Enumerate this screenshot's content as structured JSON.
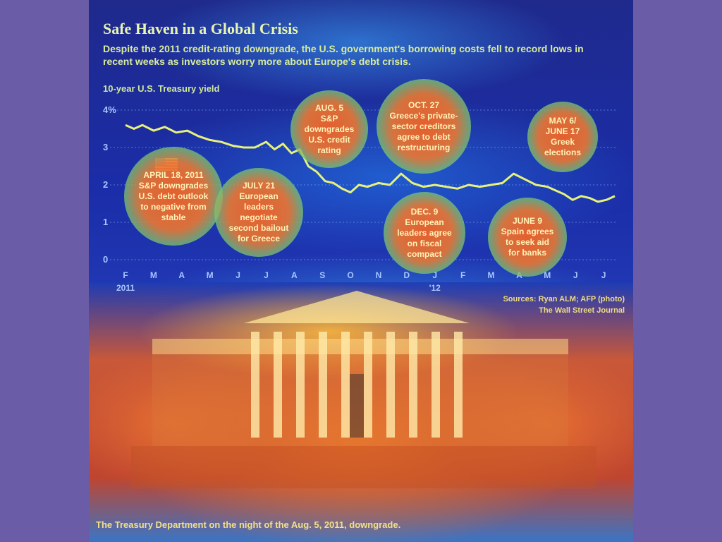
{
  "headline": {
    "title": "Safe Haven in a Global Crisis",
    "subtitle": "Despite the 2011 credit-rating downgrade, the U.S. government's borrowing costs fell to record lows in recent weeks as investors worry more about Europe's debt crisis."
  },
  "annotations": [
    {
      "date": "APRIL 18, 2011",
      "text": "S&P downgrades U.S. debt outlook to negative from stable"
    },
    {
      "date": "JULY 21",
      "text": "European leaders negotiate second bailout for Greece"
    },
    {
      "date": "AUG. 5",
      "text": "S&P downgrades U.S. credit rating"
    },
    {
      "date": "OCT. 27",
      "text": "Greece's private-sector creditors agree to debt restructuring"
    },
    {
      "date": "DEC. 9",
      "text": "European leaders agree on fiscal compact"
    },
    {
      "date": "MAY 6/ JUNE 17",
      "text": "Greek elections"
    },
    {
      "date": "JUNE 9",
      "text": "Spain agrees to seek aid for banks"
    }
  ],
  "credits": {
    "sources": "Sources: Ryan ALM; AFP (photo)",
    "publisher": "The Wall Street Journal"
  },
  "photo_caption": "The Treasury Department on the night of the Aug. 5, 2011, downgrade.",
  "colors": {
    "line": "#e6f27a",
    "axis_text": "#a8c6ff",
    "bubble_core": "#e8602c",
    "heat_blue": "#1f2da8",
    "frame": "#6a5ca6"
  },
  "chart_data": {
    "type": "line",
    "ylabel": "10-year U.S. Treasury yield",
    "ylim": [
      0,
      4
    ],
    "yticks": [
      0,
      1,
      2,
      3,
      4
    ],
    "ytick_labels": [
      "0",
      "1",
      "2",
      "3",
      "4%"
    ],
    "xlim": [
      0,
      17.5
    ],
    "month_labels": [
      "F",
      "M",
      "A",
      "M",
      "J",
      "J",
      "A",
      "S",
      "O",
      "N",
      "D",
      "J",
      "F",
      "M",
      "A",
      "M",
      "J",
      "J"
    ],
    "year_labels": [
      {
        "month": 0,
        "label": "2011"
      },
      {
        "month": 11,
        "label": "'12"
      }
    ],
    "grid": true,
    "series": [
      {
        "x": [
          0,
          0.3,
          0.6,
          1.0,
          1.4,
          1.8,
          2.2,
          2.6,
          3.0,
          3.4,
          3.8,
          4.2,
          4.6,
          5.0,
          5.3,
          5.6,
          5.9,
          6.2,
          6.5,
          6.8,
          7.1,
          7.4,
          7.7,
          8.0,
          8.3,
          8.6,
          9.0,
          9.4,
          9.8,
          10.2,
          10.6,
          11.0,
          11.4,
          11.8,
          12.2,
          12.6,
          13.0,
          13.4,
          13.8,
          14.2,
          14.6,
          15.0,
          15.3,
          15.6,
          15.9,
          16.2,
          16.5,
          16.8,
          17.1,
          17.4
        ],
        "y": [
          3.6,
          3.5,
          3.6,
          3.45,
          3.55,
          3.4,
          3.45,
          3.3,
          3.2,
          3.15,
          3.05,
          3.0,
          3.0,
          3.15,
          2.95,
          3.1,
          2.85,
          2.95,
          2.5,
          2.35,
          2.1,
          2.05,
          1.9,
          1.8,
          2.0,
          1.95,
          2.05,
          2.0,
          2.3,
          2.05,
          1.95,
          2.0,
          1.95,
          1.9,
          2.0,
          1.95,
          2.0,
          2.05,
          2.3,
          2.15,
          2.0,
          1.95,
          1.85,
          1.75,
          1.6,
          1.7,
          1.65,
          1.55,
          1.6,
          1.7
        ]
      }
    ]
  }
}
